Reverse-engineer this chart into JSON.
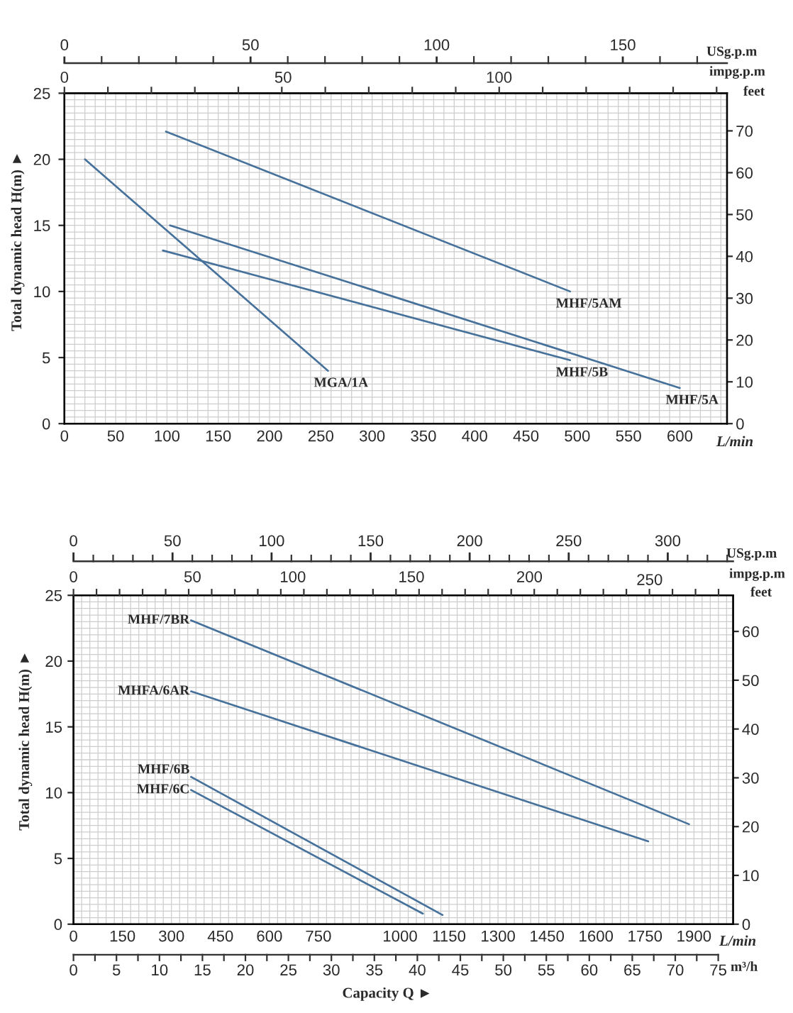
{
  "chart_data": [
    {
      "type": "line",
      "ylabel": "Total dynamic head H(m) ►",
      "xlabel": "L/min",
      "x2label": "USg.p.m",
      "y2label": "feet",
      "annotations": [
        "0",
        "50",
        "100",
        "impg.p.m"
      ],
      "xlim": [
        0,
        646
      ],
      "xticks": [
        0,
        {
          "value": 10,
          "label": null
        },
        {
          "value": 20,
          "label": null
        },
        {
          "value": 30,
          "label": null
        },
        {
          "value": 40,
          "label": null
        },
        50,
        {
          "value": 60,
          "label": null
        },
        {
          "value": 70,
          "label": null
        },
        {
          "value": 80,
          "label": null
        },
        {
          "value": 90,
          "label": null
        },
        100,
        {
          "value": 110,
          "label": null
        },
        {
          "value": 120,
          "label": null
        },
        {
          "value": 130,
          "label": null
        },
        {
          "value": 140,
          "label": null
        },
        150,
        {
          "value": 160,
          "label": null
        },
        {
          "value": 170,
          "label": null
        },
        {
          "value": 180,
          "label": null
        },
        {
          "value": 190,
          "label": null
        },
        200,
        {
          "value": 210,
          "label": null
        },
        {
          "value": 220,
          "label": null
        },
        {
          "value": 230,
          "label": null
        },
        {
          "value": 240,
          "label": null
        },
        250,
        {
          "value": 260,
          "label": null
        },
        {
          "value": 270,
          "label": null
        },
        {
          "value": 280,
          "label": null
        },
        {
          "value": 290,
          "label": null
        },
        300,
        {
          "value": 310,
          "label": null
        },
        {
          "value": 320,
          "label": null
        },
        {
          "value": 330,
          "label": null
        },
        {
          "value": 340,
          "label": null
        },
        350,
        {
          "value": 360,
          "label": null
        },
        {
          "value": 370,
          "label": null
        },
        {
          "value": 380,
          "label": null
        },
        {
          "value": 390,
          "label": null
        },
        400,
        {
          "value": 410,
          "label": null
        },
        {
          "value": 420,
          "label": null
        },
        {
          "value": 430,
          "label": null
        },
        {
          "value": 440,
          "label": null
        },
        450,
        {
          "value": 460,
          "label": null
        },
        {
          "value": 470,
          "label": null
        },
        {
          "value": 480,
          "label": null
        },
        {
          "value": 490,
          "label": null
        },
        500,
        {
          "value": 510,
          "label": null
        },
        {
          "value": 520,
          "label": null
        },
        {
          "value": 530,
          "label": null
        },
        {
          "value": 540,
          "label": null
        },
        550,
        {
          "value": 560,
          "label": null
        },
        {
          "value": 570,
          "label": null
        },
        {
          "value": 580,
          "label": null
        },
        {
          "value": 590,
          "label": null
        },
        600,
        {
          "value": 610,
          "label": null
        },
        {
          "value": 620,
          "label": null
        },
        {
          "value": 630,
          "label": null
        },
        {
          "value": 640,
          "label": null
        }
      ],
      "ylim": [
        0,
        25
      ],
      "yticks": [
        0,
        {
          "value": 0.5,
          "label": null
        },
        {
          "value": 1,
          "label": null
        },
        {
          "value": 1.5,
          "label": null
        },
        {
          "value": 2,
          "label": null
        },
        {
          "value": 2.5,
          "label": null
        },
        {
          "value": 3,
          "label": null
        },
        {
          "value": 3.5,
          "label": null
        },
        {
          "value": 4,
          "label": null
        },
        {
          "value": 4.5,
          "label": null
        },
        5,
        {
          "value": 5.5,
          "label": null
        },
        {
          "value": 6,
          "label": null
        },
        {
          "value": 6.5,
          "label": null
        },
        {
          "value": 7,
          "label": null
        },
        {
          "value": 7.5,
          "label": null
        },
        {
          "value": 8,
          "label": null
        },
        {
          "value": 8.5,
          "label": null
        },
        {
          "value": 9,
          "label": null
        },
        {
          "value": 9.5,
          "label": null
        },
        10,
        {
          "value": 10.5,
          "label": null
        },
        {
          "value": 11,
          "label": null
        },
        {
          "value": 11.5,
          "label": null
        },
        {
          "value": 12,
          "label": null
        },
        {
          "value": 12.5,
          "label": null
        },
        {
          "value": 13,
          "label": null
        },
        {
          "value": 13.5,
          "label": null
        },
        {
          "value": 14,
          "label": null
        },
        {
          "value": 14.5,
          "label": null
        },
        15,
        {
          "value": 15.5,
          "label": null
        },
        {
          "value": 16,
          "label": null
        },
        {
          "value": 16.5,
          "label": null
        },
        {
          "value": 17,
          "label": null
        },
        {
          "value": 17.5,
          "label": null
        },
        {
          "value": 18,
          "label": null
        },
        {
          "value": 18.5,
          "label": null
        },
        {
          "value": 19,
          "label": null
        },
        {
          "value": 19.5,
          "label": null
        },
        20,
        {
          "value": 20.5,
          "label": null
        },
        {
          "value": 21,
          "label": null
        },
        {
          "value": 21.5,
          "label": null
        },
        {
          "value": 22,
          "label": null
        },
        {
          "value": 22.5,
          "label": null
        },
        {
          "value": 23,
          "label": null
        },
        {
          "value": 23.5,
          "label": null
        },
        {
          "value": 24,
          "label": null
        },
        {
          "value": 24.5,
          "label": null
        },
        25
      ],
      "y2lim": [
        0,
        79
      ],
      "y2ticks": [
        0,
        10,
        20,
        30,
        40,
        50,
        60,
        70
      ],
      "x2lim": [
        0,
        178
      ],
      "x2ticks": [
        0,
        50,
        100,
        150
      ],
      "grid": true,
      "series": [
        {
          "name": "MHF/5AM",
          "color": "#46719b",
          "x": [
            99,
            493
          ],
          "values": [
            22.1,
            10.0
          ]
        },
        {
          "name": "MGA/1A",
          "color": "#46719b",
          "x": [
            20,
            257
          ],
          "values": [
            20.0,
            4.0
          ]
        },
        {
          "name": "MHF/5B",
          "color": "#46719b",
          "x": [
            96,
            493
          ],
          "values": [
            13.1,
            4.8
          ]
        },
        {
          "name": "MHF/5A",
          "color": "#46719b",
          "x": [
            103,
            600
          ],
          "values": [
            15.0,
            2.7
          ]
        }
      ]
    },
    {
      "type": "line",
      "ylabel": "Total dynamic head H(m) ►",
      "xlabel": "L/min",
      "x2label": "USg.p.m",
      "y2label": "feet",
      "annotations": [
        "0",
        "50",
        "100",
        "150",
        "200",
        "250",
        "impg.p.m",
        "0",
        "5",
        "10",
        "15",
        "20",
        "25",
        "30",
        "35",
        "40",
        "45",
        "50",
        "55",
        "60",
        "65",
        "70",
        "75",
        "m³/h",
        "Capacity Q ►"
      ],
      "xlim": [
        0,
        2020
      ],
      "xticks": [
        0,
        {
          "value": 25,
          "label": null
        },
        {
          "value": 50,
          "label": null
        },
        {
          "value": 75,
          "label": null
        },
        {
          "value": 100,
          "label": null
        },
        {
          "value": 125,
          "label": null
        },
        150,
        {
          "value": 175,
          "label": null
        },
        {
          "value": 200,
          "label": null
        },
        {
          "value": 225,
          "label": null
        },
        {
          "value": 250,
          "label": null
        },
        {
          "value": 275,
          "label": null
        },
        300,
        {
          "value": 325,
          "label": null
        },
        {
          "value": 350,
          "label": null
        },
        {
          "value": 375,
          "label": null
        },
        {
          "value": 400,
          "label": null
        },
        {
          "value": 425,
          "label": null
        },
        450,
        {
          "value": 475,
          "label": null
        },
        {
          "value": 500,
          "label": null
        },
        {
          "value": 525,
          "label": null
        },
        {
          "value": 550,
          "label": null
        },
        {
          "value": 575,
          "label": null
        },
        600,
        {
          "value": 625,
          "label": null
        },
        {
          "value": 650,
          "label": null
        },
        {
          "value": 675,
          "label": null
        },
        {
          "value": 700,
          "label": null
        },
        {
          "value": 725,
          "label": null
        },
        750,
        {
          "value": 775,
          "label": null
        },
        {
          "value": 800,
          "label": null
        },
        {
          "value": 825,
          "label": null
        },
        {
          "value": 850,
          "label": null
        },
        {
          "value": 875,
          "label": null
        },
        {
          "value": 900,
          "label": null
        },
        {
          "value": 925,
          "label": null
        },
        {
          "value": 950,
          "label": null
        },
        {
          "value": 975,
          "label": null
        },
        1000,
        {
          "value": 1025,
          "label": null
        },
        {
          "value": 1050,
          "label": null
        },
        {
          "value": 1075,
          "label": null
        },
        {
          "value": 1100,
          "label": null
        },
        {
          "value": 1125,
          "label": null
        },
        1150,
        {
          "value": 1175,
          "label": null
        },
        {
          "value": 1200,
          "label": null
        },
        {
          "value": 1225,
          "label": null
        },
        {
          "value": 1250,
          "label": null
        },
        {
          "value": 1275,
          "label": null
        },
        1300,
        {
          "value": 1325,
          "label": null
        },
        {
          "value": 1350,
          "label": null
        },
        {
          "value": 1375,
          "label": null
        },
        {
          "value": 1400,
          "label": null
        },
        {
          "value": 1425,
          "label": null
        },
        1450,
        {
          "value": 1475,
          "label": null
        },
        {
          "value": 1500,
          "label": null
        },
        {
          "value": 1525,
          "label": null
        },
        {
          "value": 1550,
          "label": null
        },
        {
          "value": 1575,
          "label": null
        },
        1600,
        {
          "value": 1625,
          "label": null
        },
        {
          "value": 1650,
          "label": null
        },
        {
          "value": 1675,
          "label": null
        },
        {
          "value": 1700,
          "label": null
        },
        {
          "value": 1725,
          "label": null
        },
        1750,
        {
          "value": 1775,
          "label": null
        },
        {
          "value": 1800,
          "label": null
        },
        {
          "value": 1825,
          "label": null
        },
        {
          "value": 1850,
          "label": null
        },
        {
          "value": 1875,
          "label": null
        },
        1900,
        {
          "value": 1925,
          "label": null
        },
        {
          "value": 1950,
          "label": null
        },
        {
          "value": 1975,
          "label": null
        },
        {
          "value": 2000,
          "label": null
        }
      ],
      "ylim": [
        0,
        25
      ],
      "yticks": [
        0,
        {
          "value": 0.5,
          "label": null
        },
        {
          "value": 1,
          "label": null
        },
        {
          "value": 1.5,
          "label": null
        },
        {
          "value": 2,
          "label": null
        },
        {
          "value": 2.5,
          "label": null
        },
        {
          "value": 3,
          "label": null
        },
        {
          "value": 3.5,
          "label": null
        },
        {
          "value": 4,
          "label": null
        },
        {
          "value": 4.5,
          "label": null
        },
        5,
        {
          "value": 5.5,
          "label": null
        },
        {
          "value": 6,
          "label": null
        },
        {
          "value": 6.5,
          "label": null
        },
        {
          "value": 7,
          "label": null
        },
        {
          "value": 7.5,
          "label": null
        },
        {
          "value": 8,
          "label": null
        },
        {
          "value": 8.5,
          "label": null
        },
        {
          "value": 9,
          "label": null
        },
        {
          "value": 9.5,
          "label": null
        },
        10,
        {
          "value": 10.5,
          "label": null
        },
        {
          "value": 11,
          "label": null
        },
        {
          "value": 11.5,
          "label": null
        },
        {
          "value": 12,
          "label": null
        },
        {
          "value": 12.5,
          "label": null
        },
        {
          "value": 13,
          "label": null
        },
        {
          "value": 13.5,
          "label": null
        },
        {
          "value": 14,
          "label": null
        },
        {
          "value": 14.5,
          "label": null
        },
        15,
        {
          "value": 15.5,
          "label": null
        },
        {
          "value": 16,
          "label": null
        },
        {
          "value": 16.5,
          "label": null
        },
        {
          "value": 17,
          "label": null
        },
        {
          "value": 17.5,
          "label": null
        },
        {
          "value": 18,
          "label": null
        },
        {
          "value": 18.5,
          "label": null
        },
        {
          "value": 19,
          "label": null
        },
        {
          "value": 19.5,
          "label": null
        },
        20,
        {
          "value": 20.5,
          "label": null
        },
        {
          "value": 21,
          "label": null
        },
        {
          "value": 21.5,
          "label": null
        },
        {
          "value": 22,
          "label": null
        },
        {
          "value": 22.5,
          "label": null
        },
        {
          "value": 23,
          "label": null
        },
        {
          "value": 23.5,
          "label": null
        },
        {
          "value": 24,
          "label": null
        },
        {
          "value": 24.5,
          "label": null
        },
        25
      ],
      "y2lim": [
        0,
        67.4
      ],
      "y2ticks": [
        0,
        10,
        20,
        30,
        40,
        50,
        60
      ],
      "x2lim": [
        0,
        333
      ],
      "x2ticks": [
        0,
        50,
        100,
        150,
        200,
        250,
        300
      ],
      "grid": true,
      "series": [
        {
          "name": "MHF/7BR",
          "color": "#46719b",
          "x": [
            360,
            1885
          ],
          "values": [
            23.1,
            7.6
          ]
        },
        {
          "name": "MHFA/6AR",
          "color": "#46719b",
          "x": [
            360,
            1760
          ],
          "values": [
            17.7,
            6.3
          ]
        },
        {
          "name": "MHF/6B",
          "color": "#46719b",
          "x": [
            360,
            1130
          ],
          "values": [
            11.2,
            0.7
          ]
        },
        {
          "name": "MHF/6C",
          "color": "#46719b",
          "x": [
            360,
            1070
          ],
          "values": [
            10.2,
            0.8
          ]
        }
      ]
    }
  ]
}
